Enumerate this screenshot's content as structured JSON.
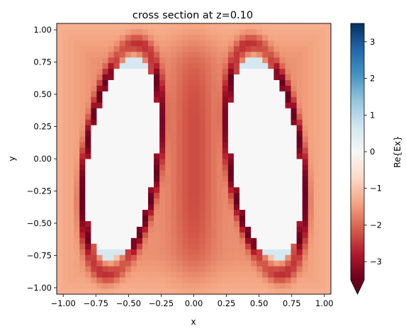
{
  "chart_data": {
    "type": "heatmap",
    "title": "cross section at z=0.10",
    "xlabel": "x",
    "ylabel": "y",
    "xlim": [
      -1.05,
      1.05
    ],
    "ylim": [
      -1.05,
      1.05
    ],
    "x_ticks": [
      -1.0,
      -0.75,
      -0.5,
      -0.25,
      0.0,
      0.25,
      0.5,
      0.75,
      1.0
    ],
    "x_tick_labels": [
      "−1.00",
      "−0.75",
      "−0.50",
      "−0.25",
      "0.00",
      "0.25",
      "0.50",
      "0.75",
      "1.00"
    ],
    "y_ticks": [
      1.0,
      0.75,
      0.5,
      0.25,
      0.0,
      -0.25,
      -0.5,
      -0.75,
      -1.0
    ],
    "y_tick_labels": [
      "1.00",
      "0.75",
      "0.50",
      "0.25",
      "0.00",
      "−0.25",
      "−0.50",
      "−0.75",
      "−1.00"
    ],
    "colorbar": {
      "label": "Re{Ex}",
      "range": [
        -3.5,
        3.5
      ],
      "ticks": [
        3,
        2,
        1,
        0,
        -1,
        -2,
        -3
      ],
      "tick_labels": [
        "3",
        "2",
        "1",
        "0",
        "−1",
        "−2",
        "−3"
      ],
      "extend": "min",
      "colormap": "RdBu",
      "colormap_stops": [
        "#67001f",
        "#b2182b",
        "#d6604d",
        "#f4a582",
        "#fddbc7",
        "#f7f7f7",
        "#d1e5f0",
        "#92c5de",
        "#4393c3",
        "#2166ac",
        "#053061"
      ]
    },
    "grid": false,
    "grid_size": [
      48,
      48
    ],
    "field_description": {
      "background_value": -1.6,
      "lobes": [
        {
          "center_x": -0.55,
          "center_y": 0.0,
          "tilt": -1,
          "interior_value": 0.0,
          "edge_value": -3.6
        },
        {
          "center_x": 0.55,
          "center_y": 0.0,
          "tilt": 1,
          "interior_value": 0.0,
          "edge_value": -3.6
        }
      ],
      "center_band_value": -2.3
    }
  }
}
